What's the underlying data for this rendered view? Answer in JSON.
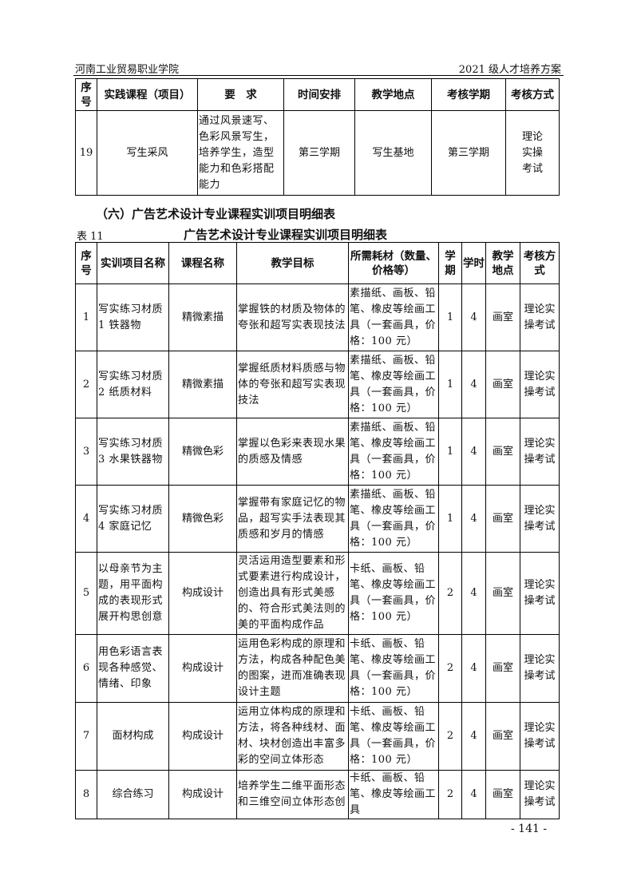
{
  "header": {
    "left": "河南工业贸易职业学院",
    "right": "2021 级人才培养方案"
  },
  "table1": {
    "headers": [
      "序号",
      "实践课程（项目）",
      "要　求",
      "时间安排",
      "教学地点",
      "考核学期",
      "考核方式"
    ],
    "rows": [
      [
        "19",
        "写生采风",
        "通过风景速写、色彩风景写生，培养学生，造型能力和色彩搭配能力",
        "第三学期",
        "写生基地",
        "第三学期",
        "理论实操考试"
      ]
    ]
  },
  "section_heading": "（六）广告艺术设计专业课程实训项目明细表",
  "table2_caption": {
    "number": "表 11",
    "title": "广告艺术设计专业课程实训项目明细表"
  },
  "table2": {
    "headers": [
      "序号",
      "实训项目名称",
      "课程名称",
      "教学目标",
      "所需耗材（数量、价格等）",
      "学期",
      "学时",
      "教学地点",
      "考核方式"
    ],
    "rows": [
      [
        "1",
        "写实练习材质 1 铁器物",
        "精微素描",
        "掌握铁的材质及物体的夸张和超写实表现技法",
        "素描纸、画板、铅笔、橡皮等绘画工具（一套画具，价格：100 元）",
        "1",
        "4",
        "画室",
        "理论实操考试"
      ],
      [
        "2",
        "写实练习材质 2 纸质材料",
        "精微素描",
        "掌握纸质材料质感与物体的夸张和超写实表现技法",
        "素描纸、画板、铅笔、橡皮等绘画工具（一套画具，价格：100 元）",
        "1",
        "4",
        "画室",
        "理论实操考试"
      ],
      [
        "3",
        "写实练习材质 3 水果铁器物",
        "精微色彩",
        "掌握以色彩来表现水果的质感及情感",
        "素描纸、画板、铅笔、橡皮等绘画工具（一套画具，价格：100 元）",
        "1",
        "4",
        "画室",
        "理论实操考试"
      ],
      [
        "4",
        "写实练习材质 4 家庭记忆",
        "精微色彩",
        "掌握带有家庭记忆的物品，超写实手法表现其质感和岁月的情感",
        "素描纸、画板、铅笔、橡皮等绘画工具（一套画具，价格：100 元）",
        "1",
        "4",
        "画室",
        "理论实操考试"
      ],
      [
        "5",
        "以母亲节为主题，用平面构成的表现形式展开构思创意",
        "构成设计",
        "灵活运用造型要素和形式要素进行构成设计，创造出具有形式美感的、符合形式美法则的美的平面构成作品",
        "卡纸、画板、铅笔、橡皮等绘画工具（一套画具，价格：100 元）",
        "2",
        "4",
        "画室",
        "理论实操考试"
      ],
      [
        "6",
        "用色彩语言表现各种感觉、情绪、印象",
        "构成设计",
        "运用色彩构成的原理和方法，构成各种配色美的图案，进而准确表现设计主题",
        "卡纸、画板、铅笔、橡皮等绘画工具（一套画具，价格：100 元）",
        "2",
        "4",
        "画室",
        "理论实操考试"
      ],
      [
        "7",
        "面材构成",
        "构成设计",
        "运用立体构成的原理和方法，将各种线材、面材、块材创造出丰富多彩的空间立体形态",
        "卡纸、画板、铅笔、橡皮等绘画工具（一套画具，价格：100 元）",
        "2",
        "4",
        "画室",
        "理论实操考试"
      ],
      [
        "8",
        "综合练习",
        "构成设计",
        "培养学生二维平面形态和三维空间立体形态创",
        "卡纸、画板、铅笔、橡皮等绘画工具",
        "2",
        "4",
        "画室",
        "理论实操考试"
      ]
    ]
  },
  "page_number": "- 141 -"
}
